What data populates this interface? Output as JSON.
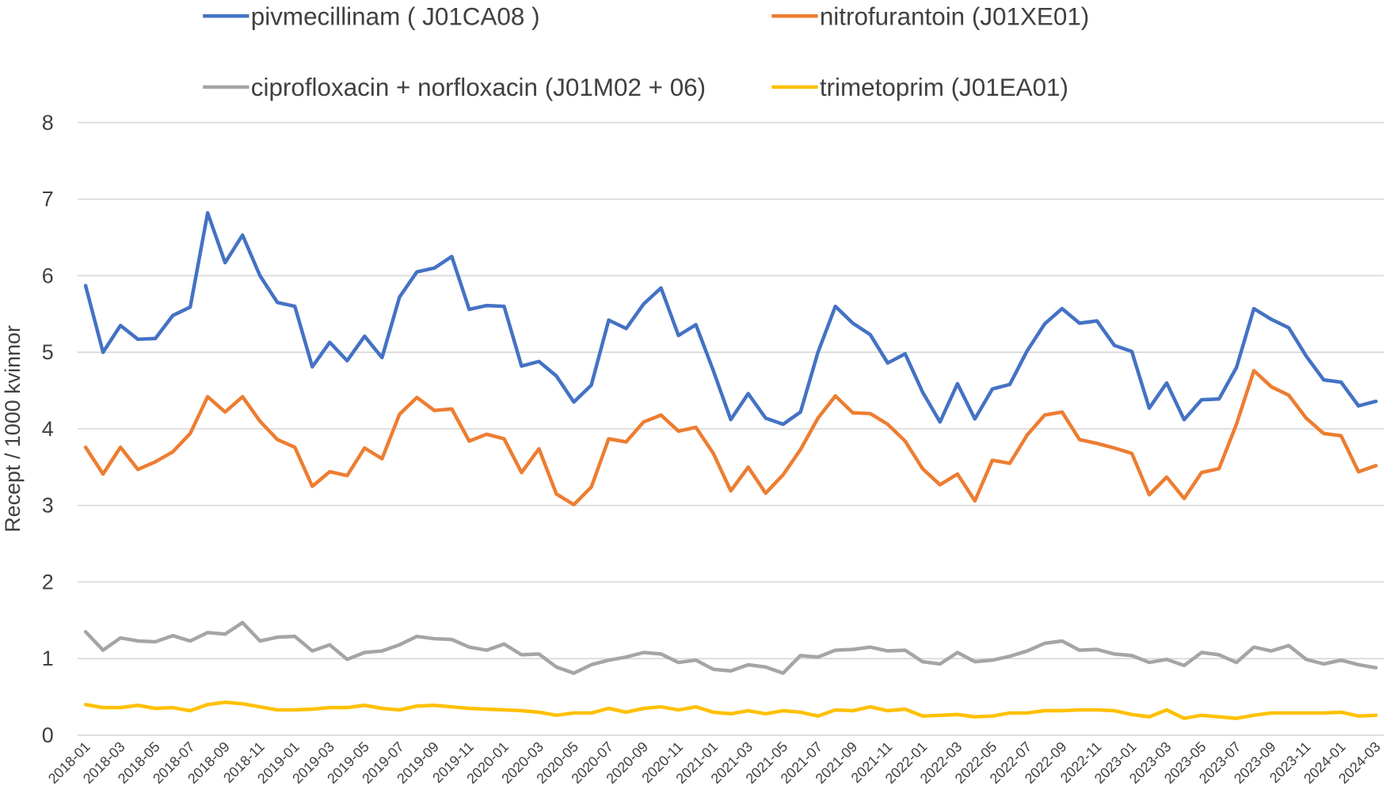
{
  "chart_data": {
    "type": "line",
    "y_label": "Recept / 1000 kvinnor",
    "categories": [
      "2018-01",
      null,
      "2018-03",
      null,
      "2018-05",
      null,
      "2018-07",
      null,
      "2018-09",
      null,
      "2018-11",
      null,
      "2019-01",
      null,
      "2019-03",
      null,
      "2019-05",
      null,
      "2019-07",
      null,
      "2019-09",
      null,
      "2019-11",
      null,
      "2020-01",
      null,
      "2020-03",
      null,
      "2020-05",
      null,
      "2020-07",
      null,
      "2020-09",
      null,
      "2020-11",
      null,
      "2021-01",
      null,
      "2021-03",
      null,
      "2021-05",
      null,
      "2021-07",
      null,
      "2021-09",
      null,
      "2021-11",
      null,
      "2022-01",
      null,
      "2022-03",
      null,
      "2022-05",
      null,
      "2022-07",
      null,
      "2022-09",
      null,
      "2022-11",
      null,
      "2023-01",
      null,
      "2023-03",
      null,
      "2023-05",
      null,
      "2023-07",
      null,
      "2023-09",
      null,
      "2023-11",
      null,
      "2024-01",
      null,
      "2024-03"
    ],
    "series": [
      {
        "name": "pivmecillinam ( J01CA08 )",
        "color": "#4472c4",
        "values": [
          5.87,
          5.0,
          5.35,
          5.17,
          5.18,
          5.48,
          5.59,
          6.82,
          6.17,
          6.53,
          6.0,
          5.65,
          5.6,
          4.81,
          5.13,
          4.89,
          5.21,
          4.93,
          5.72,
          6.05,
          6.1,
          6.25,
          5.56,
          5.61,
          5.6,
          4.82,
          4.88,
          4.69,
          4.35,
          4.57,
          5.42,
          5.31,
          5.63,
          5.84,
          5.22,
          5.36,
          4.76,
          4.12,
          4.46,
          4.14,
          4.06,
          4.22,
          5.0,
          5.6,
          5.38,
          5.23,
          4.86,
          4.98,
          4.48,
          4.09,
          4.59,
          4.13,
          4.52,
          4.58,
          5.02,
          5.37,
          5.57,
          5.38,
          5.41,
          5.09,
          5.01,
          4.27,
          4.6,
          4.12,
          4.38,
          4.39,
          4.8,
          5.57,
          5.43,
          5.32,
          4.95,
          4.64,
          4.61,
          4.3,
          4.36
        ]
      },
      {
        "name": "nitrofurantoin (J01XE01)",
        "color": "#ed7d31",
        "values": [
          3.76,
          3.41,
          3.76,
          3.47,
          3.57,
          3.7,
          3.94,
          4.42,
          4.22,
          4.42,
          4.1,
          3.86,
          3.76,
          3.25,
          3.44,
          3.39,
          3.75,
          3.61,
          4.19,
          4.41,
          4.24,
          4.26,
          3.84,
          3.93,
          3.87,
          3.43,
          3.74,
          3.15,
          3.01,
          3.24,
          3.87,
          3.83,
          4.09,
          4.18,
          3.97,
          4.02,
          3.68,
          3.19,
          3.5,
          3.16,
          3.4,
          3.73,
          4.14,
          4.43,
          4.21,
          4.2,
          4.06,
          3.84,
          3.48,
          3.27,
          3.41,
          3.06,
          3.59,
          3.55,
          3.92,
          4.18,
          4.22,
          3.86,
          3.81,
          3.75,
          3.68,
          3.14,
          3.37,
          3.09,
          3.43,
          3.48,
          4.06,
          4.76,
          4.55,
          4.44,
          4.14,
          3.94,
          3.91,
          3.44,
          3.52
        ]
      },
      {
        "name": "ciprofloxacin + norfloxacin (J01M02 + 06)",
        "color": "#a5a5a5",
        "values": [
          1.35,
          1.11,
          1.27,
          1.23,
          1.22,
          1.3,
          1.23,
          1.34,
          1.32,
          1.47,
          1.23,
          1.28,
          1.29,
          1.1,
          1.18,
          0.99,
          1.08,
          1.1,
          1.18,
          1.29,
          1.26,
          1.25,
          1.15,
          1.11,
          1.19,
          1.05,
          1.06,
          0.89,
          0.81,
          0.92,
          0.98,
          1.02,
          1.08,
          1.06,
          0.95,
          0.98,
          0.86,
          0.84,
          0.92,
          0.89,
          0.81,
          1.04,
          1.02,
          1.11,
          1.12,
          1.15,
          1.1,
          1.11,
          0.96,
          0.93,
          1.08,
          0.96,
          0.98,
          1.03,
          1.1,
          1.2,
          1.23,
          1.11,
          1.12,
          1.06,
          1.04,
          0.95,
          0.99,
          0.91,
          1.08,
          1.05,
          0.95,
          1.15,
          1.1,
          1.17,
          0.99,
          0.93,
          0.98,
          0.92,
          0.88
        ]
      },
      {
        "name": "trimetoprim (J01EA01)",
        "color": "#ffc000",
        "values": [
          0.4,
          0.36,
          0.36,
          0.39,
          0.35,
          0.36,
          0.32,
          0.4,
          0.43,
          0.41,
          0.37,
          0.33,
          0.33,
          0.34,
          0.36,
          0.36,
          0.39,
          0.35,
          0.33,
          0.38,
          0.39,
          0.37,
          0.35,
          0.34,
          0.33,
          0.32,
          0.3,
          0.26,
          0.29,
          0.29,
          0.35,
          0.3,
          0.35,
          0.37,
          0.33,
          0.37,
          0.3,
          0.28,
          0.32,
          0.28,
          0.32,
          0.3,
          0.25,
          0.33,
          0.32,
          0.37,
          0.32,
          0.34,
          0.25,
          0.26,
          0.27,
          0.24,
          0.25,
          0.29,
          0.29,
          0.32,
          0.32,
          0.33,
          0.33,
          0.32,
          0.27,
          0.24,
          0.33,
          0.22,
          0.26,
          0.24,
          0.22,
          0.26,
          0.29,
          0.29,
          0.29,
          0.29,
          0.3,
          0.25,
          0.26
        ]
      }
    ],
    "ylim": [
      0,
      8
    ],
    "yticks": [
      0,
      1,
      2,
      3,
      4,
      5,
      6,
      7,
      8
    ],
    "grid": true,
    "legend": "top"
  }
}
